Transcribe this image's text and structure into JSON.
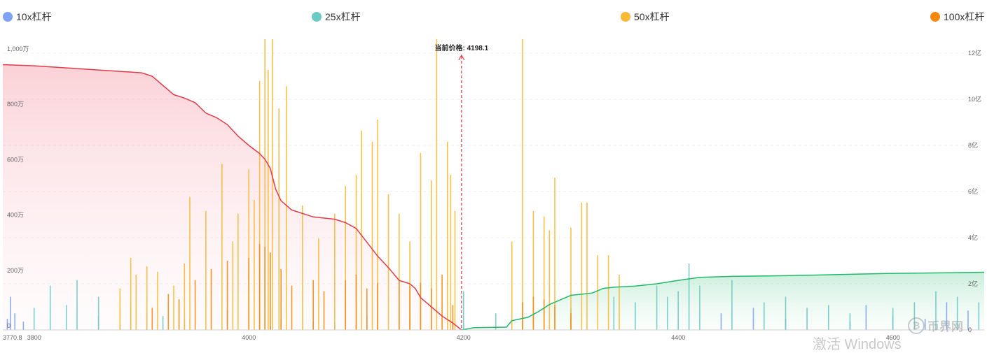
{
  "legend": [
    {
      "label": "10x杠杆",
      "color": "#7ea3f2"
    },
    {
      "label": "25x杠杆",
      "color": "#6ccac4"
    },
    {
      "label": "50x杠杆",
      "color": "#f9b935"
    },
    {
      "label": "100x杠杆",
      "color": "#f5890e"
    }
  ],
  "current_price": {
    "label": "当前价格: 4198.1",
    "value": 4198.1,
    "color": "#e23b4a"
  },
  "watermark": {
    "text": "激活 Windows",
    "brand_icon": "₿",
    "brand": "币界网"
  },
  "chart_data": {
    "type": "bar+area",
    "title": "",
    "x": {
      "min": 3770.8,
      "max": 4685,
      "ticks": [
        3770.8,
        3800,
        4000,
        4200,
        4400,
        4600
      ]
    },
    "left_axis": {
      "min": 0,
      "max": 10000000,
      "ticks": [
        {
          "v": 0,
          "label": "0"
        },
        {
          "v": 2000000,
          "label": "200万"
        },
        {
          "v": 4000000,
          "label": "400万"
        },
        {
          "v": 6000000,
          "label": "600万"
        },
        {
          "v": 8000000,
          "label": "800万"
        },
        {
          "v": 10000000,
          "label": "1,000万"
        }
      ]
    },
    "right_axis": {
      "min": 0,
      "max": 1200000000,
      "ticks": [
        {
          "v": 0,
          "label": "0"
        },
        {
          "v": 200000000,
          "label": "2亿"
        },
        {
          "v": 400000000,
          "label": "4亿"
        },
        {
          "v": 600000000,
          "label": "6亿"
        },
        {
          "v": 800000000,
          "label": "8亿"
        },
        {
          "v": 1000000000,
          "label": "10亿"
        },
        {
          "v": 1200000000,
          "label": "12亿"
        }
      ]
    },
    "grid": true,
    "cumulative_long": {
      "name": "cumulative long liquidation",
      "color": "#e23b4a",
      "points": [
        [
          3770.8,
          1150000000
        ],
        [
          3800,
          1145000000
        ],
        [
          3850,
          1130000000
        ],
        [
          3900,
          1115000000
        ],
        [
          3910,
          1100000000
        ],
        [
          3920,
          1060000000
        ],
        [
          3930,
          1020000000
        ],
        [
          3940,
          1005000000
        ],
        [
          3950,
          985000000
        ],
        [
          3960,
          940000000
        ],
        [
          3970,
          920000000
        ],
        [
          3980,
          890000000
        ],
        [
          3990,
          840000000
        ],
        [
          4000,
          800000000
        ],
        [
          4010,
          765000000
        ],
        [
          4015,
          740000000
        ],
        [
          4020,
          700000000
        ],
        [
          4025,
          610000000
        ],
        [
          4030,
          560000000
        ],
        [
          4040,
          520000000
        ],
        [
          4060,
          490000000
        ],
        [
          4080,
          480000000
        ],
        [
          4090,
          465000000
        ],
        [
          4100,
          440000000
        ],
        [
          4110,
          380000000
        ],
        [
          4120,
          320000000
        ],
        [
          4130,
          270000000
        ],
        [
          4140,
          215000000
        ],
        [
          4150,
          200000000
        ],
        [
          4155,
          180000000
        ],
        [
          4160,
          140000000
        ],
        [
          4170,
          100000000
        ],
        [
          4180,
          60000000
        ],
        [
          4190,
          30000000
        ],
        [
          4198.1,
          0
        ]
      ]
    },
    "cumulative_short": {
      "name": "cumulative short liquidation",
      "color": "#21b86a",
      "points": [
        [
          4198.1,
          0
        ],
        [
          4210,
          10000000
        ],
        [
          4240,
          12000000
        ],
        [
          4245,
          40000000
        ],
        [
          4260,
          55000000
        ],
        [
          4270,
          80000000
        ],
        [
          4280,
          110000000
        ],
        [
          4290,
          130000000
        ],
        [
          4300,
          150000000
        ],
        [
          4320,
          160000000
        ],
        [
          4330,
          180000000
        ],
        [
          4340,
          185000000
        ],
        [
          4360,
          190000000
        ],
        [
          4380,
          200000000
        ],
        [
          4400,
          215000000
        ],
        [
          4420,
          228000000
        ],
        [
          4450,
          232000000
        ],
        [
          4500,
          235000000
        ],
        [
          4550,
          240000000
        ],
        [
          4600,
          245000000
        ],
        [
          4650,
          248000000
        ],
        [
          4685,
          250000000
        ]
      ]
    },
    "series_note": "bar series values in 万, sampled",
    "bars": {
      "10x杠杆": [
        [
          3775,
          40
        ],
        [
          3778,
          120
        ],
        [
          3782,
          60
        ],
        [
          3790,
          30
        ],
        [
          3860,
          50
        ],
        [
          3880,
          20
        ],
        [
          4020,
          15
        ],
        [
          4080,
          25
        ],
        [
          4120,
          10
        ],
        [
          4190,
          30
        ],
        [
          4440,
          60
        ],
        [
          4470,
          80
        ],
        [
          4500,
          40
        ],
        [
          4560,
          30
        ],
        [
          4575,
          90
        ],
        [
          4600,
          50
        ],
        [
          4630,
          40
        ],
        [
          4650,
          100
        ],
        [
          4670,
          70
        ]
      ],
      "25x杠杆": [
        [
          3800,
          80
        ],
        [
          3815,
          160
        ],
        [
          3830,
          90
        ],
        [
          3840,
          180
        ],
        [
          3860,
          120
        ],
        [
          3890,
          100
        ],
        [
          3905,
          60
        ],
        [
          3920,
          50
        ],
        [
          3940,
          40
        ],
        [
          3980,
          70
        ],
        [
          4030,
          40
        ],
        [
          4060,
          30
        ],
        [
          4110,
          50
        ],
        [
          4150,
          40
        ],
        [
          4200,
          140
        ],
        [
          4230,
          60
        ],
        [
          4300,
          80
        ],
        [
          4340,
          120
        ],
        [
          4360,
          100
        ],
        [
          4380,
          160
        ],
        [
          4390,
          120
        ],
        [
          4400,
          140
        ],
        [
          4410,
          240
        ],
        [
          4420,
          160
        ],
        [
          4450,
          180
        ],
        [
          4480,
          100
        ],
        [
          4500,
          120
        ],
        [
          4520,
          80
        ],
        [
          4540,
          90
        ],
        [
          4560,
          60
        ],
        [
          4600,
          80
        ],
        [
          4620,
          100
        ],
        [
          4640,
          140
        ],
        [
          4660,
          120
        ],
        [
          4680,
          100
        ]
      ],
      "50x杠杆": [
        [
          3880,
          150
        ],
        [
          3890,
          260
        ],
        [
          3895,
          200
        ],
        [
          3905,
          230
        ],
        [
          3915,
          210
        ],
        [
          3930,
          160
        ],
        [
          3940,
          240
        ],
        [
          3945,
          480
        ],
        [
          3960,
          430
        ],
        [
          3975,
          600
        ],
        [
          3985,
          320
        ],
        [
          3990,
          420
        ],
        [
          4000,
          580
        ],
        [
          4005,
          470
        ],
        [
          4010,
          900
        ],
        [
          4015,
          1100
        ],
        [
          4018,
          940
        ],
        [
          4022,
          1150
        ],
        [
          4028,
          800
        ],
        [
          4035,
          880
        ],
        [
          4050,
          450
        ],
        [
          4065,
          330
        ],
        [
          4080,
          420
        ],
        [
          4090,
          520
        ],
        [
          4100,
          560
        ],
        [
          4105,
          720
        ],
        [
          4115,
          680
        ],
        [
          4120,
          760
        ],
        [
          4130,
          490
        ],
        [
          4140,
          420
        ],
        [
          4150,
          320
        ],
        [
          4160,
          640
        ],
        [
          4170,
          540
        ],
        [
          4175,
          1130
        ],
        [
          4185,
          680
        ],
        [
          4188,
          560
        ],
        [
          4192,
          430
        ],
        [
          4245,
          320
        ],
        [
          4255,
          1130
        ],
        [
          4265,
          430
        ],
        [
          4275,
          410
        ],
        [
          4280,
          360
        ],
        [
          4285,
          550
        ],
        [
          4300,
          370
        ],
        [
          4310,
          460
        ],
        [
          4315,
          460
        ],
        [
          4325,
          270
        ],
        [
          4335,
          270
        ],
        [
          4345,
          200
        ]
      ],
      "100x杠杆": [
        [
          3910,
          80
        ],
        [
          3925,
          130
        ],
        [
          3935,
          110
        ],
        [
          3950,
          180
        ],
        [
          3965,
          220
        ],
        [
          3980,
          250
        ],
        [
          4000,
          260
        ],
        [
          4010,
          310
        ],
        [
          4015,
          300
        ],
        [
          4020,
          280
        ],
        [
          4030,
          220
        ],
        [
          4040,
          160
        ],
        [
          4060,
          180
        ],
        [
          4070,
          140
        ],
        [
          4090,
          180
        ],
        [
          4100,
          200
        ],
        [
          4110,
          150
        ],
        [
          4120,
          170
        ],
        [
          4140,
          180
        ],
        [
          4150,
          160
        ],
        [
          4160,
          170
        ],
        [
          4170,
          150
        ],
        [
          4180,
          200
        ],
        [
          4190,
          90
        ],
        [
          4255,
          100
        ],
        [
          4265,
          120
        ],
        [
          4275,
          110
        ],
        [
          4285,
          90
        ],
        [
          4300,
          60
        ]
      ]
    }
  }
}
